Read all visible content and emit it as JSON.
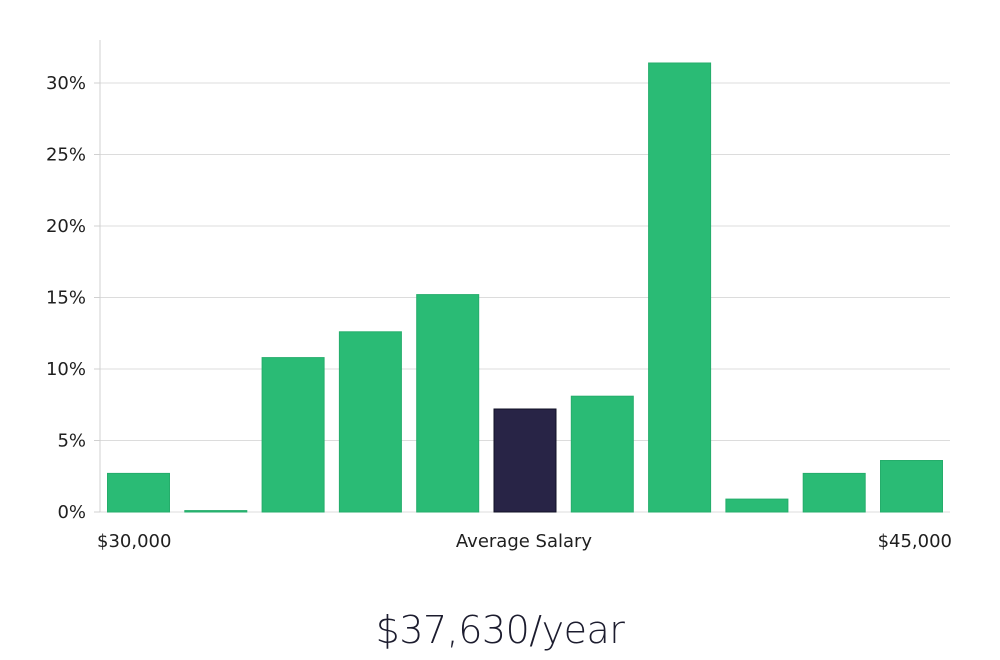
{
  "chart_data": {
    "type": "bar",
    "title": "",
    "xlabel": "Average Salary",
    "ylabel": "",
    "x_range_labels": {
      "min": "$30,000",
      "max": "$45,000"
    },
    "ylim": [
      0,
      33
    ],
    "yticks": [
      {
        "value": 0,
        "label": "0%"
      },
      {
        "value": 5,
        "label": "5%"
      },
      {
        "value": 10,
        "label": "10%"
      },
      {
        "value": 15,
        "label": "15%"
      },
      {
        "value": 20,
        "label": "20%"
      },
      {
        "value": 25,
        "label": "25%"
      },
      {
        "value": 30,
        "label": "30%"
      }
    ],
    "grid": true,
    "values": [
      2.7,
      0.1,
      10.8,
      12.6,
      15.2,
      7.2,
      8.1,
      31.4,
      0.9,
      2.7,
      3.6
    ],
    "highlight_index": 5,
    "colors": {
      "bar": "#2abb75",
      "highlight": "#282446",
      "highlight_border": "#111126",
      "grid": "#dcdcdc",
      "axis": "#d0d0d0"
    }
  },
  "summary": {
    "salary_text": "$37,630/year"
  }
}
